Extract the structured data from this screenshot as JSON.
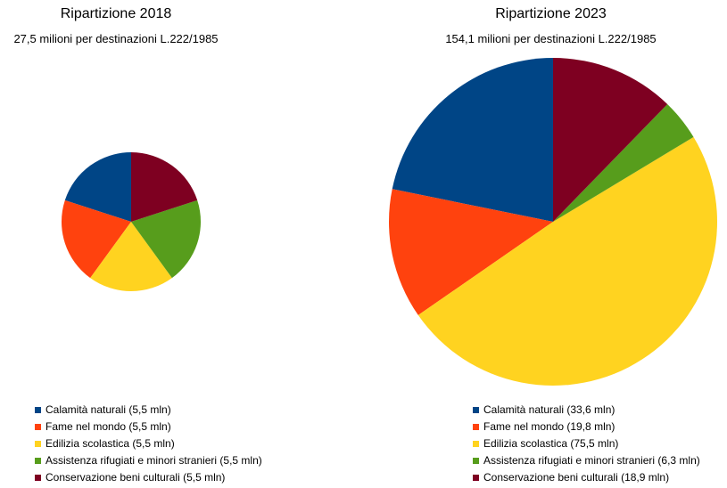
{
  "chart_data": [
    {
      "type": "pie",
      "title": "Ripartizione 2018",
      "subtitle": "27,5 milioni per destinazioni L.222/1985",
      "total": 27.5,
      "unit": "mln",
      "slices": [
        {
          "label": "Calamità naturali (5,5 mln)",
          "value": 5.5,
          "color": "#004586"
        },
        {
          "label": "Fame nel mondo (5,5 mln)",
          "value": 5.5,
          "color": "#ff420e"
        },
        {
          "label": "Edilizia scolastica (5,5 mln)",
          "value": 5.5,
          "color": "#ffd320"
        },
        {
          "label": "Assistenza rifugiati e minori stranieri (5,5 mln)",
          "value": 5.5,
          "color": "#579d1c"
        },
        {
          "label": "Conservazione beni culturali (5,5 mln)",
          "value": 5.5,
          "color": "#7e0021"
        }
      ]
    },
    {
      "type": "pie",
      "title": "Ripartizione 2023",
      "subtitle": "154,1 milioni per destinazioni L.222/1985",
      "total": 154.1,
      "unit": "mln",
      "slices": [
        {
          "label": "Calamità naturali (33,6 mln)",
          "value": 33.6,
          "color": "#004586"
        },
        {
          "label": "Fame nel mondo (19,8 mln)",
          "value": 19.8,
          "color": "#ff420e"
        },
        {
          "label": "Edilizia scolastica (75,5 mln)",
          "value": 75.5,
          "color": "#ffd320"
        },
        {
          "label": "Assistenza rifugiati e minori stranieri (6,3 mln)",
          "value": 6.3,
          "color": "#579d1c"
        },
        {
          "label": "Conservazione beni culturali (18,9 mln)",
          "value": 18.9,
          "color": "#7e0021"
        }
      ]
    }
  ]
}
